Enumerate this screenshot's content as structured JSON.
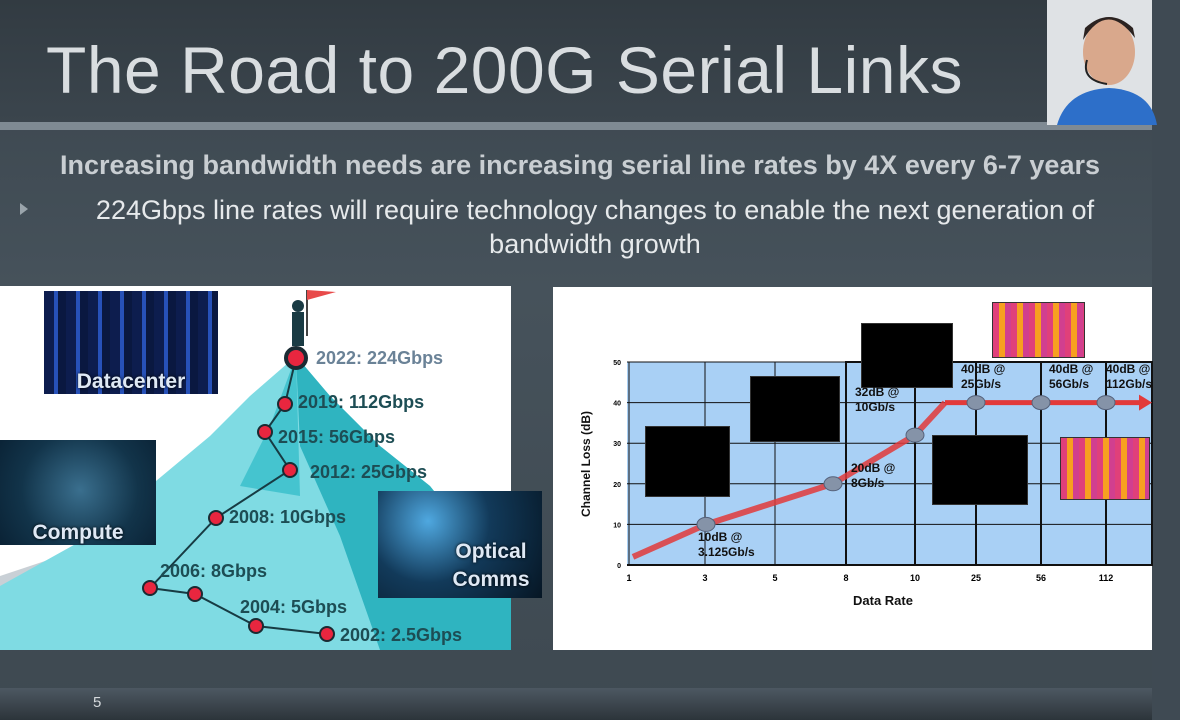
{
  "slide": {
    "title": "The Road to 200G Serial Links",
    "subtitle": "Increasing bandwidth needs are increasing serial line rates by 4X every 6-7 years",
    "bullet": "224Gbps line rates will require technology changes to enable the next generation of bandwidth growth",
    "page_number": "5"
  },
  "left_panel": {
    "images": [
      {
        "label": "Datacenter"
      },
      {
        "label": "Compute"
      },
      {
        "label": "Optical Comms"
      }
    ],
    "milestones": [
      {
        "year": "2022",
        "label": "2022: 224Gbps",
        "rate_gbps": 224
      },
      {
        "year": "2019",
        "label": "2019: 112Gbps",
        "rate_gbps": 112
      },
      {
        "year": "2015",
        "label": "2015: 56Gbps",
        "rate_gbps": 56
      },
      {
        "year": "2012",
        "label": "2012: 25Gbps",
        "rate_gbps": 25
      },
      {
        "year": "2008",
        "label": "2008: 10Gbps",
        "rate_gbps": 10
      },
      {
        "year": "2006",
        "label": "2006: 8Gbps",
        "rate_gbps": 8
      },
      {
        "year": "2004",
        "label": "2004: 5Gbps",
        "rate_gbps": 5
      },
      {
        "year": "2002",
        "label": "2002: 2.5Gbps",
        "rate_gbps": 2.5
      }
    ]
  },
  "chart_data": {
    "type": "line",
    "xlabel": "Data Rate",
    "ylabel": "Channel Loss (dB)",
    "x_ticks": [
      "1",
      "3",
      "5",
      "8",
      "10",
      "25",
      "56",
      "112"
    ],
    "y_ticks": [
      0,
      10,
      20,
      30,
      40,
      50
    ],
    "ylim": [
      0,
      50
    ],
    "grid": true,
    "points": [
      {
        "x": "3.125Gb/s",
        "y": 10,
        "label": "10dB @ 3.125Gb/s"
      },
      {
        "x": "8Gb/s",
        "y": 20,
        "label": "20dB @ 8Gb/s"
      },
      {
        "x": "10Gb/s",
        "y": 32,
        "label": "32dB @ 10Gb/s"
      },
      {
        "x": "25Gb/s",
        "y": 40,
        "label": "40dB @ 25Gb/s"
      },
      {
        "x": "56Gb/s",
        "y": 40,
        "label": "40dB @ 56Gb/s"
      },
      {
        "x": "112Gb/s",
        "y": 40,
        "label": "40dB @ 112Gb/s"
      }
    ],
    "colors": {
      "line": "#e23a3a",
      "plot_bg": "#a9d0f5",
      "point": "#8593a8"
    }
  }
}
